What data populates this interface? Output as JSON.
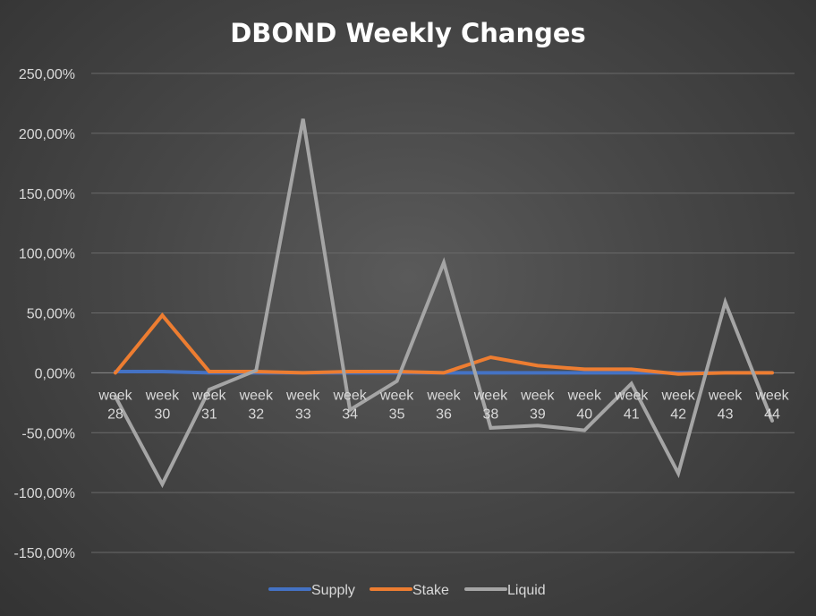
{
  "chart_data": {
    "type": "line",
    "title": "DBOND Weekly Changes",
    "xlabel": "",
    "ylabel": "",
    "categories": [
      "week 28",
      "week 30",
      "week 31",
      "week 32",
      "week 33",
      "week 34",
      "week 35",
      "week 36",
      "week 38",
      "week 39",
      "week 40",
      "week 41",
      "week 42",
      "week 43",
      "week 44"
    ],
    "y_ticks": [
      "250,00%",
      "200,00%",
      "150,00%",
      "100,00%",
      "50,00%",
      "0,00%",
      "-50,00%",
      "-100,00%",
      "-150,00%"
    ],
    "y_tick_values": [
      250,
      200,
      150,
      100,
      50,
      0,
      -50,
      -100,
      -150
    ],
    "ylim": [
      -150,
      250
    ],
    "grid": true,
    "legend_position": "bottom",
    "series": [
      {
        "name": "Supply",
        "color": "#4472c4",
        "values": [
          1,
          1,
          0,
          0,
          0,
          0,
          0,
          0,
          0,
          0,
          0,
          0,
          0,
          0,
          0
        ]
      },
      {
        "name": "Stake",
        "color": "#ed7d31",
        "values": [
          0,
          48,
          1,
          1,
          0,
          1,
          1,
          0,
          13,
          6,
          3,
          3,
          -1,
          0,
          0
        ]
      },
      {
        "name": "Liquid",
        "color": "#a5a5a5",
        "values": [
          -20,
          -93,
          -14,
          2,
          212,
          -31,
          -7,
          92,
          -46,
          -44,
          -48,
          -9,
          -84,
          59,
          -40
        ]
      }
    ]
  }
}
